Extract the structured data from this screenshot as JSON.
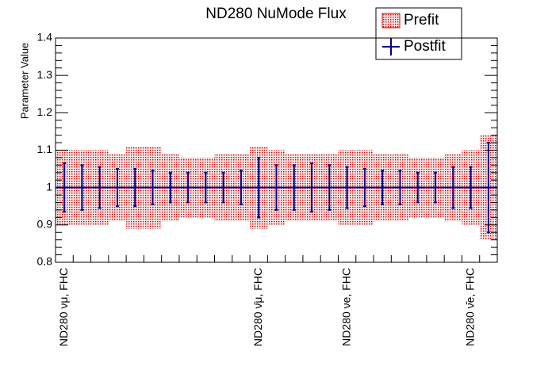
{
  "chart_data": {
    "type": "errorbar",
    "title": "ND280 NuMode Flux",
    "y_label": "Parameter Value",
    "categories": [
      "ND280 νμ, FHC",
      null,
      null,
      null,
      null,
      null,
      null,
      null,
      null,
      null,
      null,
      "ND280 ν̄μ, FHC",
      null,
      null,
      null,
      null,
      "ND280 νe, FHC",
      null,
      null,
      null,
      null,
      null,
      null,
      "ND280 ν̄e, FHC",
      null
    ],
    "series": [
      {
        "name": "Prefit",
        "color": "#cc0000",
        "values": [
          1,
          1,
          1,
          1,
          1,
          1,
          1,
          1,
          1,
          1,
          1,
          1,
          1,
          1,
          1,
          1,
          1,
          1,
          1,
          1,
          1,
          1,
          1,
          1,
          1
        ],
        "errors": [
          0.1,
          0.1,
          0.1,
          0.09,
          0.11,
          0.11,
          0.09,
          0.08,
          0.08,
          0.09,
          0.09,
          0.11,
          0.1,
          0.09,
          0.09,
          0.09,
          0.1,
          0.1,
          0.09,
          0.09,
          0.08,
          0.08,
          0.09,
          0.1,
          0.14
        ]
      },
      {
        "name": "Postfit",
        "color": "#00008b",
        "values": [
          1,
          1,
          1,
          1,
          1,
          1,
          1,
          1,
          1,
          1,
          1,
          1,
          1,
          1,
          1,
          1,
          1,
          1,
          1,
          1,
          1,
          1,
          1,
          1,
          1
        ],
        "errors": [
          0.065,
          0.06,
          0.055,
          0.05,
          0.05,
          0.045,
          0.04,
          0.04,
          0.04,
          0.04,
          0.045,
          0.08,
          0.06,
          0.06,
          0.065,
          0.06,
          0.055,
          0.05,
          0.045,
          0.045,
          0.04,
          0.04,
          0.055,
          0.055,
          0.12
        ]
      }
    ],
    "ylim": [
      0.8,
      1.4
    ],
    "yticks": [
      0.8,
      0.9,
      1,
      1.1,
      1.2,
      1.3,
      1.4
    ],
    "legend": "top-right"
  }
}
